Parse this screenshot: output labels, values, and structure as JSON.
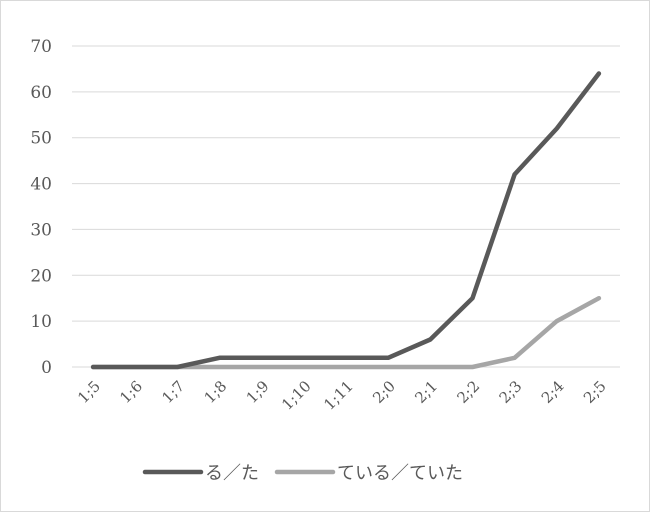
{
  "chart_data": {
    "type": "line",
    "title": "",
    "xlabel": "",
    "ylabel": "",
    "categories": [
      "1;5",
      "1;6",
      "1;7",
      "1;8",
      "1;9",
      "1;10",
      "1;11",
      "2;0",
      "2;1",
      "2;2",
      "2;3",
      "2;4",
      "2;5"
    ],
    "yticks": [
      "0",
      "10",
      "20",
      "30",
      "40",
      "50",
      "60",
      "70"
    ],
    "ylim": [
      0,
      70
    ],
    "grid": true,
    "legend_position": "bottom",
    "series": [
      {
        "name": "る／た",
        "color": "#595959",
        "values": [
          0,
          0,
          0,
          2,
          2,
          2,
          2,
          2,
          6,
          15,
          42,
          52,
          64
        ]
      },
      {
        "name": "ている／ていた",
        "color": "#a6a6a6",
        "values": [
          0,
          0,
          0,
          0,
          0,
          0,
          0,
          0,
          0,
          0,
          2,
          10,
          15
        ]
      }
    ]
  }
}
